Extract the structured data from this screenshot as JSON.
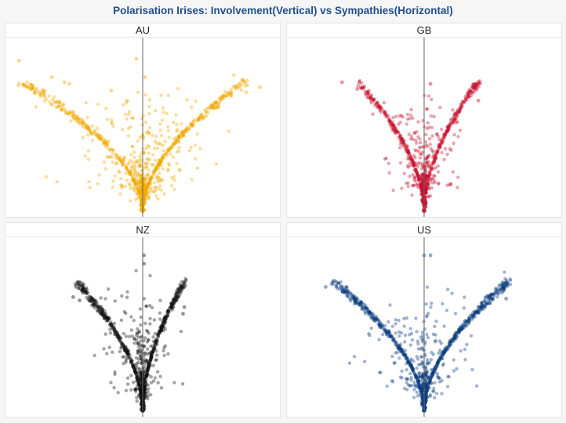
{
  "title": "Polarisation Irises: Involvement(Vertical) vs Sympathies(Horizontal)",
  "chart_data": [
    {
      "type": "scatter",
      "panel": "AU",
      "color": "#f2a900",
      "xlim": [
        -1,
        1
      ],
      "ylim": [
        0,
        1
      ],
      "center_line_x": 0,
      "outliers": [
        {
          "x": -0.98,
          "y": 0.9
        },
        {
          "x": -0.72,
          "y": 0.8
        },
        {
          "x": -0.62,
          "y": 0.77
        },
        {
          "x": -0.58,
          "y": 0.76
        },
        {
          "x": -0.05,
          "y": 0.91
        },
        {
          "x": 0.02,
          "y": 0.8
        },
        {
          "x": 0.93,
          "y": 0.74
        },
        {
          "x": 0.82,
          "y": 0.71
        },
        {
          "x": -0.25,
          "y": 0.72
        }
      ]
    },
    {
      "type": "scatter",
      "panel": "GB",
      "color": "#c8102e",
      "xlim": [
        -1,
        1
      ],
      "ylim": [
        0,
        1
      ],
      "center_line_x": 0,
      "outliers": [
        {
          "x": -0.65,
          "y": 0.77
        },
        {
          "x": -0.53,
          "y": 0.73
        },
        {
          "x": -0.42,
          "y": 0.66
        },
        {
          "x": 0.43,
          "y": 0.66
        },
        {
          "x": 0.37,
          "y": 0.69
        },
        {
          "x": 0.05,
          "y": 0.76
        }
      ]
    },
    {
      "type": "scatter",
      "panel": "NZ",
      "color": "#111111",
      "xlim": [
        -1,
        1
      ],
      "ylim": [
        0,
        1
      ],
      "center_line_x": 0,
      "outliers": [
        {
          "x": -0.55,
          "y": 0.68
        },
        {
          "x": -0.5,
          "y": 0.66
        },
        {
          "x": -0.4,
          "y": 0.63
        },
        {
          "x": 0.01,
          "y": 0.93
        },
        {
          "x": 0.01,
          "y": 0.88
        },
        {
          "x": 0.33,
          "y": 0.62
        },
        {
          "x": 0.32,
          "y": 0.58
        }
      ]
    },
    {
      "type": "scatter",
      "panel": "US",
      "color": "#0b3c7d",
      "xlim": [
        -1,
        1
      ],
      "ylim": [
        0,
        1
      ],
      "center_line_x": 0,
      "outliers": [
        {
          "x": -0.78,
          "y": 0.74
        },
        {
          "x": -0.6,
          "y": 0.69
        },
        {
          "x": -0.55,
          "y": 0.67
        },
        {
          "x": 0.0,
          "y": 0.93
        },
        {
          "x": 0.05,
          "y": 0.93
        },
        {
          "x": 0.52,
          "y": 0.69
        },
        {
          "x": 0.65,
          "y": 0.67
        },
        {
          "x": 0.53,
          "y": 0.66
        }
      ]
    }
  ]
}
